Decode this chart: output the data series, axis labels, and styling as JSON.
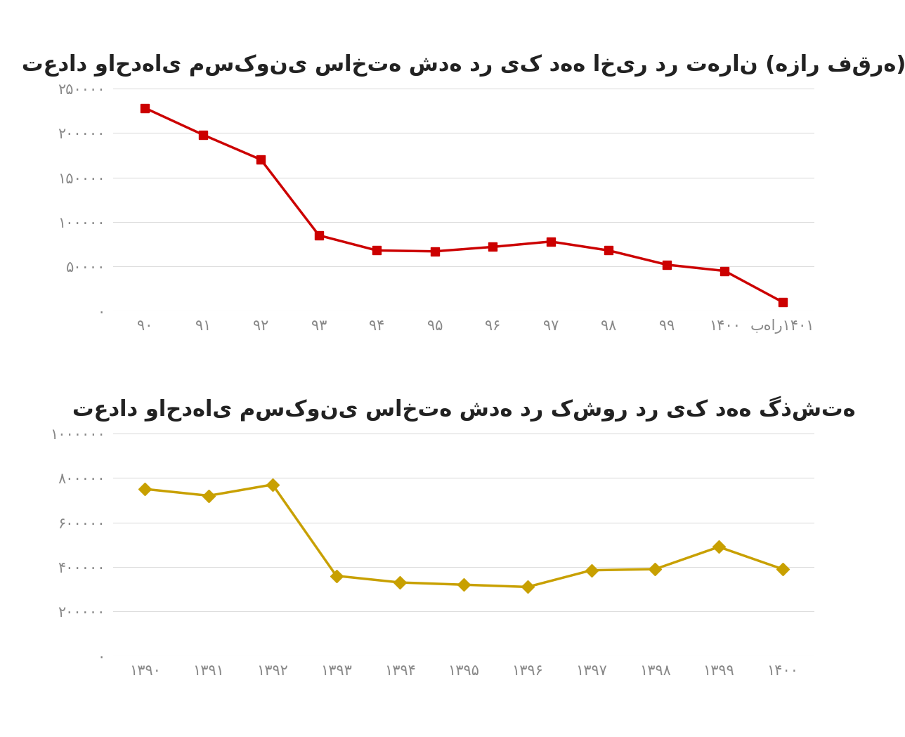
{
  "chart1": {
    "title": "تعداد واحدهای مسکونی ساخته شده در یک دهه اخیر در تهران (هزار فقره)",
    "x_labels": [
      "۹۰",
      "۹۱",
      "۹۲",
      "۹۳",
      "۹۴",
      "۹۵",
      "۹۶",
      "۹۷",
      "۹۸",
      "۹۹",
      "۱۴۰۰",
      "بهار۱۴۰۱"
    ],
    "values": [
      228000,
      198000,
      170000,
      85000,
      68000,
      67000,
      72000,
      78000,
      68000,
      52000,
      45000,
      10000
    ],
    "color": "#CC0000",
    "marker": "s",
    "ylim": [
      0,
      250000
    ],
    "yticks": [
      0,
      50000,
      100000,
      150000,
      200000,
      250000
    ],
    "ytick_labels": [
      "۰",
      "۵۰۰۰۰",
      "۱۰۰۰۰۰",
      "۱۵۰۰۰۰",
      "۲۰۰۰۰۰",
      "۲۵۰۰۰۰"
    ]
  },
  "chart2": {
    "title": "تعداد واحدهای مسکونی ساخته شده در کشور در یک دهه گذشته",
    "x_labels": [
      "۱۳۹۰",
      "۱۳۹۱",
      "۱۳۹۲",
      "۱۳۹۳",
      "۱۳۹۴",
      "۱۳۹۵",
      "۱۳۹۶",
      "۱۳۹۷",
      "۱۳۹۸",
      "۱۳۹۹",
      "۱۴۰۰"
    ],
    "values": [
      750000,
      720000,
      770000,
      360000,
      330000,
      320000,
      310000,
      385000,
      390000,
      490000,
      390000
    ],
    "color": "#C8A000",
    "marker": "D",
    "ylim": [
      0,
      1000000
    ],
    "yticks": [
      0,
      200000,
      400000,
      600000,
      800000,
      1000000
    ],
    "ytick_labels": [
      "۰",
      "۲۰۰۰۰۰",
      "۴۰۰۰۰۰",
      "۶۰۰۰۰۰",
      "۸۰۰۰۰۰",
      "۱۰۰۰۰۰۰"
    ]
  },
  "background_color": "#FFFFFF",
  "text_color": "#888888",
  "grid_color": "#DDDDDD",
  "line_width": 2.5,
  "marker_size": 9,
  "title_fontsize": 22,
  "tick_fontsize": 15
}
